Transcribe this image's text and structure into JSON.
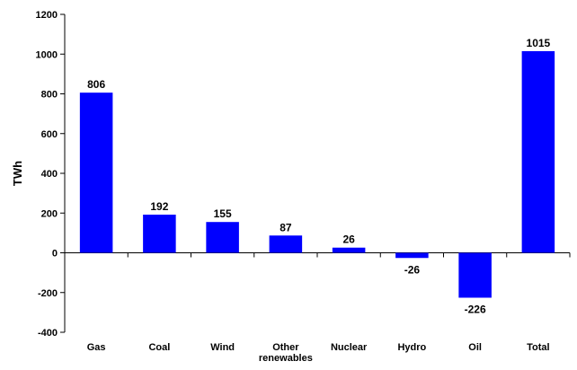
{
  "chart_data": {
    "type": "bar",
    "title": "",
    "xlabel": "",
    "ylabel": "TWh",
    "ylim": [
      -400,
      1200
    ],
    "yticks": [
      -400,
      -200,
      0,
      200,
      400,
      600,
      800,
      1000,
      1200
    ],
    "grid": false,
    "legend": "none",
    "bar_color": "#0000ff",
    "categories": [
      [
        "Gas"
      ],
      [
        "Coal"
      ],
      [
        "Wind"
      ],
      [
        "Other",
        "renewables"
      ],
      [
        "Nuclear"
      ],
      [
        "Hydro"
      ],
      [
        "Oil"
      ],
      [
        "Total"
      ]
    ],
    "values": [
      806,
      192,
      155,
      87,
      26,
      -26,
      -226,
      1015
    ]
  }
}
